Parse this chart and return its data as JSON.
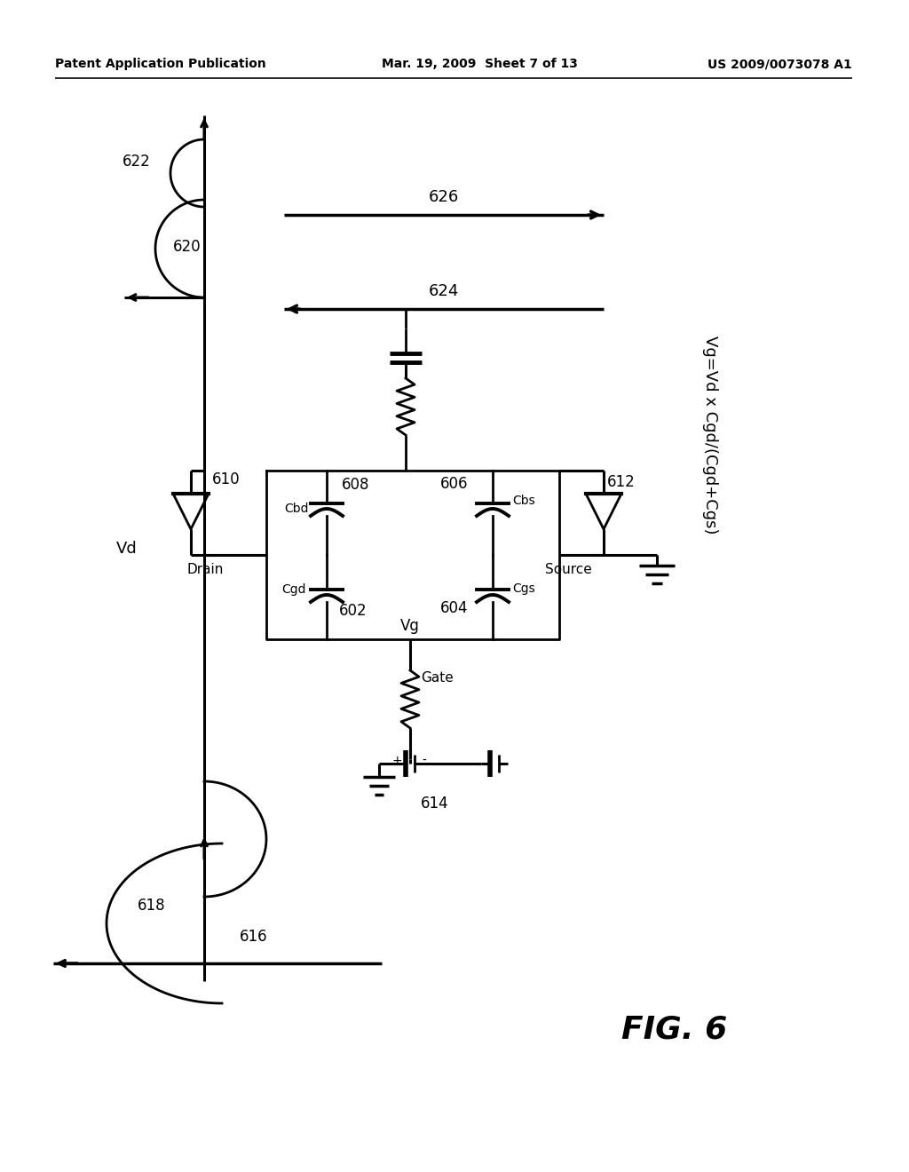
{
  "header_left": "Patent Application Publication",
  "header_center": "Mar. 19, 2009  Sheet 7 of 13",
  "header_right": "US 2009/0073078 A1",
  "fig_label": "FIG. 6",
  "equation": "Vg=Vd x Cgd/(Cgd+Cgs)",
  "background": "#ffffff",
  "line_color": "#000000"
}
